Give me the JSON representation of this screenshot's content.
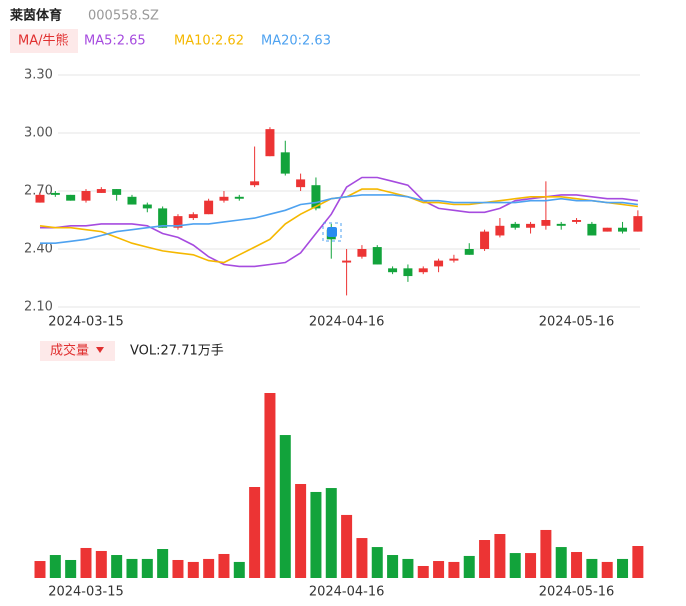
{
  "header": {
    "name": "莱茵体育",
    "code": "000558.SZ",
    "ma_button": "MA/牛熊"
  },
  "chart_data": [
    {
      "type": "candlestick",
      "categories": [
        null,
        null,
        null,
        "2024-03-15",
        null,
        null,
        null,
        null,
        null,
        null,
        null,
        null,
        null,
        null,
        null,
        null,
        null,
        null,
        null,
        null,
        "2024-04-16",
        null,
        null,
        null,
        null,
        null,
        null,
        null,
        null,
        null,
        null,
        null,
        null,
        null,
        null,
        "2024-05-16",
        null,
        null,
        null,
        null
      ],
      "open": [
        2.64,
        2.69,
        2.68,
        2.65,
        2.69,
        2.71,
        2.67,
        2.63,
        2.61,
        2.51,
        2.56,
        2.58,
        2.65,
        2.67,
        2.73,
        2.88,
        2.9,
        2.72,
        2.73,
        2.5,
        2.33,
        2.36,
        2.41,
        2.3,
        2.3,
        2.28,
        2.31,
        2.34,
        2.4,
        2.4,
        2.47,
        2.53,
        2.51,
        2.52,
        2.53,
        2.54,
        2.53,
        2.49,
        2.51,
        2.49
      ],
      "high": [
        2.69,
        2.7,
        2.68,
        2.71,
        2.72,
        2.71,
        2.68,
        2.64,
        2.62,
        2.58,
        2.59,
        2.66,
        2.7,
        2.68,
        2.93,
        3.03,
        2.96,
        2.79,
        2.77,
        2.53,
        2.4,
        2.42,
        2.42,
        2.31,
        2.32,
        2.31,
        2.35,
        2.37,
        2.43,
        2.5,
        2.56,
        2.54,
        2.54,
        2.75,
        2.54,
        2.56,
        2.54,
        2.51,
        2.54,
        2.6
      ],
      "low": [
        2.64,
        2.67,
        2.65,
        2.64,
        2.69,
        2.65,
        2.63,
        2.59,
        2.51,
        2.5,
        2.55,
        2.58,
        2.64,
        2.65,
        2.72,
        2.88,
        2.78,
        2.7,
        2.6,
        2.35,
        2.16,
        2.35,
        2.32,
        2.27,
        2.23,
        2.27,
        2.28,
        2.33,
        2.37,
        2.39,
        2.46,
        2.5,
        2.48,
        2.5,
        2.5,
        2.53,
        2.47,
        2.49,
        2.48,
        2.49
      ],
      "close": [
        2.68,
        2.68,
        2.65,
        2.7,
        2.71,
        2.68,
        2.63,
        2.61,
        2.51,
        2.57,
        2.58,
        2.65,
        2.67,
        2.66,
        2.75,
        3.02,
        2.79,
        2.76,
        2.61,
        2.45,
        2.34,
        2.4,
        2.32,
        2.28,
        2.26,
        2.3,
        2.34,
        2.35,
        2.37,
        2.49,
        2.52,
        2.51,
        2.53,
        2.55,
        2.52,
        2.55,
        2.47,
        2.51,
        2.49,
        2.57
      ],
      "up_color": "#ec3434",
      "down_color": "#12a33b",
      "series": [
        {
          "name": "MA5:2.65",
          "color": "#a64bdf",
          "values": [
            2.51,
            2.51,
            2.52,
            2.52,
            2.53,
            2.53,
            2.53,
            2.52,
            2.48,
            2.46,
            2.42,
            2.36,
            2.32,
            2.31,
            2.31,
            2.32,
            2.33,
            2.38,
            2.48,
            2.58,
            2.72,
            2.77,
            2.77,
            2.75,
            2.73,
            2.65,
            2.61,
            2.6,
            2.59,
            2.59,
            2.61,
            2.65,
            2.66,
            2.67,
            2.68,
            2.68,
            2.67,
            2.66,
            2.66,
            2.65
          ]
        },
        {
          "name": "MA10:2.62",
          "color": "#f5b800",
          "values": [
            2.52,
            2.51,
            2.51,
            2.5,
            2.49,
            2.46,
            2.43,
            2.41,
            2.39,
            2.38,
            2.37,
            2.34,
            2.33,
            2.37,
            2.41,
            2.45,
            2.53,
            2.58,
            2.62,
            2.66,
            2.67,
            2.71,
            2.71,
            2.69,
            2.67,
            2.64,
            2.64,
            2.63,
            2.63,
            2.64,
            2.65,
            2.66,
            2.67,
            2.67,
            2.67,
            2.66,
            2.65,
            2.64,
            2.63,
            2.62
          ]
        },
        {
          "name": "MA20:2.63",
          "color": "#4ea2f0",
          "values": [
            2.43,
            2.43,
            2.44,
            2.45,
            2.47,
            2.49,
            2.5,
            2.51,
            2.52,
            2.52,
            2.53,
            2.53,
            2.54,
            2.55,
            2.56,
            2.58,
            2.6,
            2.63,
            2.64,
            2.66,
            2.67,
            2.68,
            2.68,
            2.68,
            2.67,
            2.65,
            2.65,
            2.64,
            2.64,
            2.64,
            2.64,
            2.64,
            2.65,
            2.65,
            2.66,
            2.65,
            2.65,
            2.64,
            2.64,
            2.63
          ]
        }
      ],
      "ylim": [
        2.1,
        3.3
      ],
      "yticks": [
        {
          "value": 3.3,
          "label": "3.30"
        },
        {
          "value": 3.0,
          "label": "3.00"
        },
        {
          "value": 2.7,
          "label": "2.70"
        },
        {
          "value": 2.4,
          "label": "2.40"
        },
        {
          "value": 2.1,
          "label": "2.10"
        }
      ],
      "grid": true
    },
    {
      "type": "bar",
      "title": "成交量",
      "subtitle": "VOL:27.71万手",
      "categories": [
        null,
        null,
        null,
        "2024-03-15",
        null,
        null,
        null,
        null,
        null,
        null,
        null,
        null,
        null,
        null,
        null,
        null,
        null,
        null,
        null,
        null,
        "2024-04-16",
        null,
        null,
        null,
        null,
        null,
        null,
        null,
        null,
        null,
        null,
        null,
        null,
        null,
        null,
        "2024-05-16",
        null,
        null,
        null,
        null
      ],
      "values": [
        14.7,
        19.9,
        15.6,
        26,
        23.4,
        19.9,
        16.5,
        16.5,
        25.1,
        15.6,
        13.9,
        16.5,
        20.8,
        13.9,
        78.8,
        160.2,
        123.8,
        81.4,
        74.5,
        77.9,
        54.6,
        34.6,
        26.8,
        19.9,
        16.5,
        10.4,
        14.7,
        13.9,
        19.1,
        32.9,
        38.1,
        21.6,
        21.6,
        41.6,
        26.8,
        22.5,
        16.5,
        13.9,
        16.5,
        27.71
      ]
    }
  ]
}
